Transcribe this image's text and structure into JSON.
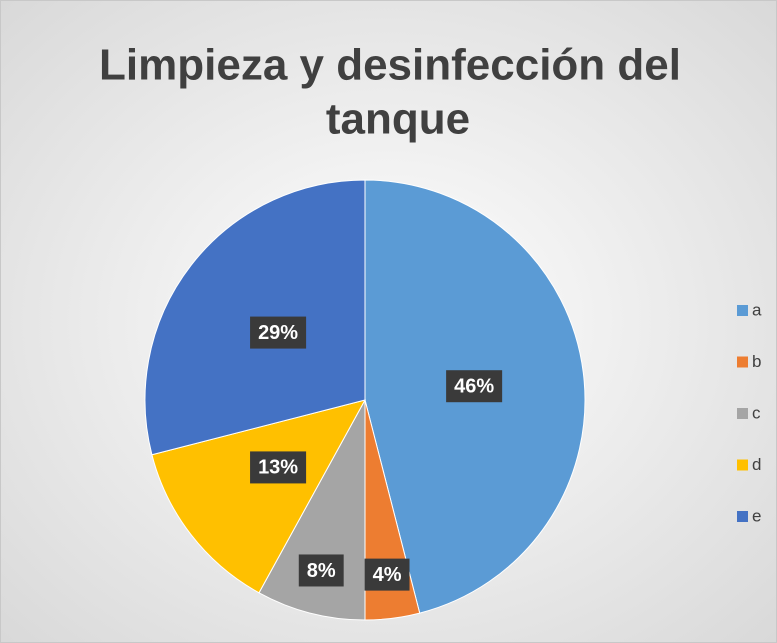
{
  "chart_data": {
    "type": "pie",
    "title_lines": [
      "Limpieza y desinfección del",
      "tanque"
    ],
    "categories": [
      "a",
      "b",
      "c",
      "d",
      "e"
    ],
    "values": [
      46,
      4,
      8,
      13,
      29
    ],
    "value_labels": [
      "46%",
      "4%",
      "8%",
      "13%",
      "29%"
    ],
    "colors": [
      "#5b9bd5",
      "#ed7d31",
      "#a5a5a5",
      "#ffc000",
      "#4472c4"
    ],
    "legend": "right"
  }
}
